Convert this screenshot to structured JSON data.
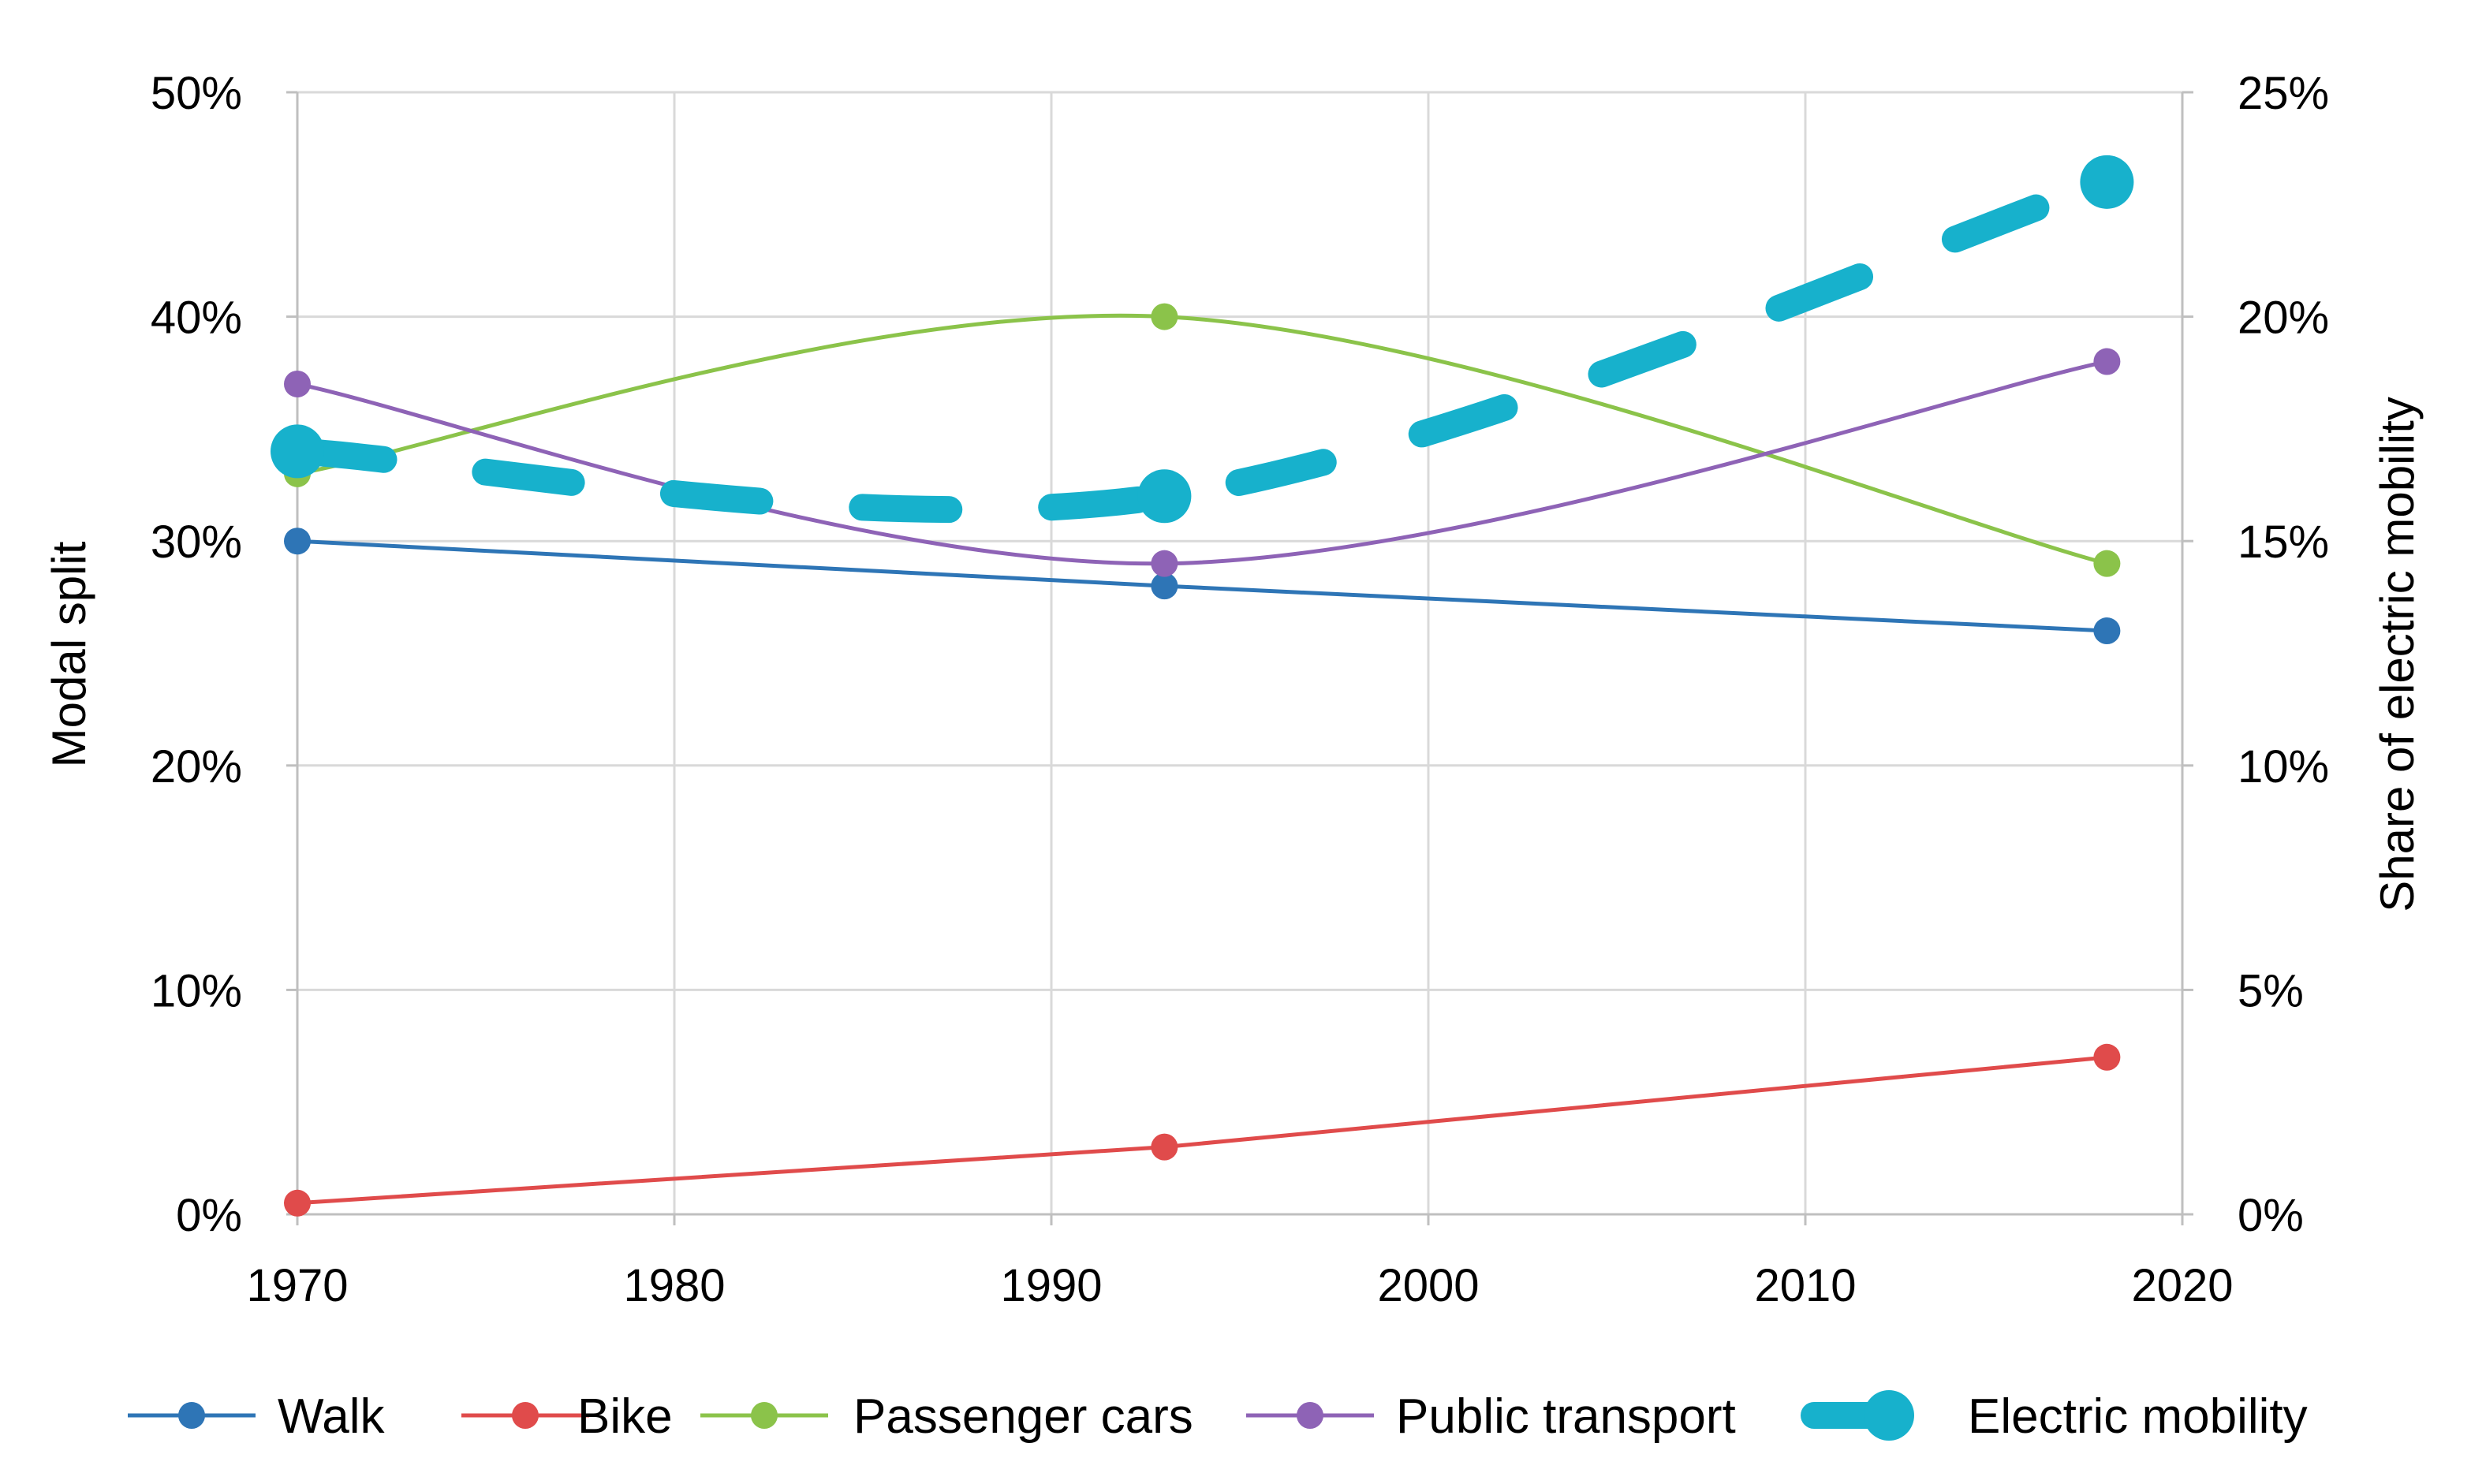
{
  "chart_data": {
    "type": "line",
    "title": "",
    "x": [
      1970,
      1993,
      2018
    ],
    "xlim": [
      1970,
      2020
    ],
    "xticks": [
      "1970",
      "1980",
      "1990",
      "2000",
      "2010",
      "2020"
    ],
    "xtick_values": [
      1970,
      1980,
      1990,
      2000,
      2010,
      2020
    ],
    "ylabel": "Modal split",
    "ylim": [
      0,
      50
    ],
    "yticks": [
      "0%",
      "10%",
      "20%",
      "30%",
      "40%",
      "50%"
    ],
    "ytick_values": [
      0,
      10,
      20,
      30,
      40,
      50
    ],
    "y2label": "Share of electric mobility",
    "y2lim": [
      0,
      25
    ],
    "y2ticks": [
      "0%",
      "5%",
      "10%",
      "15%",
      "20%",
      "25%"
    ],
    "y2tick_values": [
      0,
      5,
      10,
      15,
      20,
      25
    ],
    "grid": true,
    "legend_position": "bottom",
    "series": [
      {
        "name": "Walk",
        "axis": "left",
        "values": [
          30,
          28,
          26
        ],
        "color": "#2E75B6",
        "smooth": false
      },
      {
        "name": "Bike",
        "axis": "left",
        "values": [
          0.5,
          3,
          7
        ],
        "color": "#E04B4B",
        "smooth": false
      },
      {
        "name": "Passenger cars",
        "axis": "left",
        "values": [
          33,
          40,
          29
        ],
        "color": "#8BC34A",
        "smooth": true
      },
      {
        "name": "Public transport",
        "axis": "left",
        "values": [
          37,
          29,
          38
        ],
        "color": "#8E63B6",
        "smooth": true
      },
      {
        "name": "Electric mobility",
        "axis": "right",
        "values": [
          17,
          16,
          23
        ],
        "color": "#17B1CC",
        "smooth": true,
        "dashed": true
      }
    ]
  }
}
